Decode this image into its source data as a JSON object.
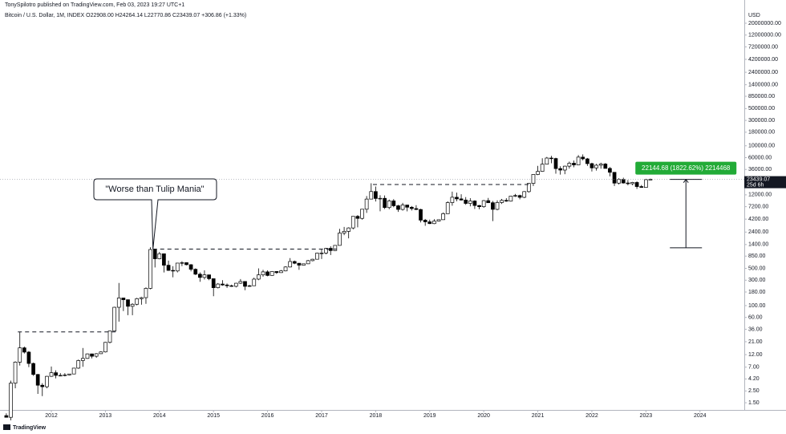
{
  "header": {
    "publisher": "TonySpilotro published on TradingView.com, Feb 03, 2023 19:27 UTC+1",
    "footer": "TradingView"
  },
  "chart_data": {
    "type": "candlestick",
    "title": "Bitcoin / U.S. Dollar, 1M, INDEX  O22908.00  H24264.14  L22770.86  C23439.07  +306.86 (+1.33%)",
    "unit": "USD",
    "log_scale": true,
    "up_color": "#ffffff",
    "down_color": "#000000",
    "edge_color": "#000000",
    "xlim": [
      2011.05,
      2024.82
    ],
    "xticks": [
      2012,
      2013,
      2014,
      2015,
      2016,
      2017,
      2018,
      2019,
      2020,
      2021,
      2022,
      2023,
      2024
    ],
    "ylim": [
      1.1,
      33600000
    ],
    "yticks": [
      {
        "value": 20000000,
        "label": "20000000.00"
      },
      {
        "value": 12000000,
        "label": "12000000.00"
      },
      {
        "value": 7200000,
        "label": "7200000.00"
      },
      {
        "value": 4200000,
        "label": "4200000.00"
      },
      {
        "value": 2400000,
        "label": "2400000.00"
      },
      {
        "value": 1400000,
        "label": "1400000.00"
      },
      {
        "value": 850000,
        "label": "850000.00"
      },
      {
        "value": 500000,
        "label": "500000.00"
      },
      {
        "value": 300000,
        "label": "300000.00"
      },
      {
        "value": 180000,
        "label": "180000.00"
      },
      {
        "value": 100000,
        "label": "100000.00"
      },
      {
        "value": 60000,
        "label": "60000.00"
      },
      {
        "value": 36000,
        "label": "36000.00"
      },
      {
        "value": 12000,
        "label": "12000.00"
      },
      {
        "value": 7200,
        "label": "7200.00"
      },
      {
        "value": 4200,
        "label": "4200.00"
      },
      {
        "value": 2400,
        "label": "2400.00"
      },
      {
        "value": 1400,
        "label": "1400.00"
      },
      {
        "value": 850,
        "label": "850.00"
      },
      {
        "value": 500,
        "label": "500.00"
      },
      {
        "value": 300,
        "label": "300.00"
      },
      {
        "value": 180,
        "label": "180.00"
      },
      {
        "value": 100,
        "label": "100.00"
      },
      {
        "value": 60,
        "label": "60.00"
      },
      {
        "value": 36,
        "label": "36.00"
      },
      {
        "value": 21,
        "label": "21.00"
      },
      {
        "value": 12,
        "label": "12.00"
      },
      {
        "value": 7,
        "label": "7.00"
      },
      {
        "value": 4.2,
        "label": "4.20"
      },
      {
        "value": 2.5,
        "label": "2.50"
      },
      {
        "value": 1.5,
        "label": "1.50"
      }
    ],
    "x": [
      2011.167,
      2011.25,
      2011.333,
      2011.417,
      2011.5,
      2011.583,
      2011.667,
      2011.75,
      2011.833,
      2011.917,
      2012,
      2012.083,
      2012.167,
      2012.25,
      2012.333,
      2012.417,
      2012.5,
      2012.583,
      2012.667,
      2012.75,
      2012.833,
      2012.917,
      2013,
      2013.083,
      2013.167,
      2013.25,
      2013.333,
      2013.417,
      2013.5,
      2013.583,
      2013.667,
      2013.75,
      2013.833,
      2013.917,
      2014,
      2014.083,
      2014.167,
      2014.25,
      2014.333,
      2014.417,
      2014.5,
      2014.583,
      2014.667,
      2014.75,
      2014.833,
      2014.917,
      2015,
      2015.083,
      2015.167,
      2015.25,
      2015.333,
      2015.417,
      2015.5,
      2015.583,
      2015.667,
      2015.75,
      2015.833,
      2015.917,
      2016,
      2016.083,
      2016.167,
      2016.25,
      2016.333,
      2016.417,
      2016.5,
      2016.583,
      2016.667,
      2016.75,
      2016.833,
      2016.917,
      2017,
      2017.083,
      2017.167,
      2017.25,
      2017.333,
      2017.417,
      2017.5,
      2017.583,
      2017.667,
      2017.75,
      2017.833,
      2017.917,
      2018,
      2018.083,
      2018.167,
      2018.25,
      2018.333,
      2018.417,
      2018.5,
      2018.583,
      2018.667,
      2018.75,
      2018.833,
      2018.917,
      2019,
      2019.083,
      2019.167,
      2019.25,
      2019.333,
      2019.417,
      2019.5,
      2019.583,
      2019.667,
      2019.75,
      2019.833,
      2019.917,
      2020,
      2020.083,
      2020.167,
      2020.25,
      2020.333,
      2020.417,
      2020.5,
      2020.583,
      2020.667,
      2020.75,
      2020.833,
      2020.917,
      2021,
      2021.083,
      2021.167,
      2021.25,
      2021.333,
      2021.417,
      2021.5,
      2021.583,
      2021.667,
      2021.75,
      2021.833,
      2021.917,
      2022,
      2022.083,
      2022.167,
      2022.25,
      2022.333,
      2022.417,
      2022.5,
      2022.583,
      2022.667,
      2022.75,
      2022.833,
      2022.917,
      2023,
      2023.083
    ],
    "open": [
      0.86,
      0.8,
      3.5,
      8.7,
      16.1,
      13.4,
      8.2,
      5.1,
      3.2,
      3.0,
      4.7,
      5.5,
      4.9,
      4.9,
      5.0,
      5.2,
      6.7,
      9.3,
      10.2,
      12.4,
      11.2,
      12.5,
      13.5,
      20.4,
      33.4,
      93,
      139,
      129,
      97,
      106,
      135,
      141,
      211,
      1130,
      757,
      940,
      573,
      458,
      447,
      628,
      640,
      586,
      481,
      389,
      338,
      378,
      320,
      217,
      254,
      244,
      236,
      230,
      263,
      284,
      230,
      236,
      314,
      377,
      430,
      368,
      437,
      416,
      448,
      531,
      673,
      624,
      574,
      609,
      698,
      742,
      964,
      970,
      1190,
      1080,
      1350,
      2300,
      2480,
      2870,
      4740,
      4340,
      6450,
      10000,
      13850,
      10260,
      10330,
      6930,
      9240,
      7490,
      6390,
      7730,
      7030,
      6630,
      6370,
      4020,
      3740,
      3460,
      3850,
      4100,
      5320,
      8580,
      10820,
      10080,
      9590,
      8290,
      9200,
      7570,
      7190,
      9350,
      8540,
      6410,
      8620,
      9450,
      9140,
      11350,
      11650,
      10780,
      13800,
      19700,
      28990,
      33110,
      45140,
      58920,
      57720,
      37330,
      35040,
      41460,
      47100,
      43790,
      61320,
      56900,
      46300,
      38480,
      43190,
      45530,
      37640,
      31800,
      19930,
      23310,
      20050,
      19430,
      20490,
      17170,
      16550,
      22908
    ],
    "high": [
      0.95,
      3.9,
      9,
      32,
      17,
      14,
      8.5,
      5.2,
      3.5,
      4.8,
      7.2,
      6.1,
      5.4,
      5.4,
      5.2,
      6.7,
      9.7,
      16,
      12.6,
      12.5,
      12.8,
      13.8,
      20.8,
      33.5,
      95,
      266,
      140,
      130,
      111,
      140,
      146,
      220,
      1242,
      1150,
      1020,
      950,
      700,
      550,
      630,
      680,
      650,
      600,
      500,
      420,
      460,
      380,
      320,
      265,
      300,
      260,
      247,
      267,
      315,
      285,
      245,
      335,
      500,
      470,
      460,
      445,
      440,
      465,
      548,
      780,
      700,
      630,
      613,
      720,
      755,
      980,
      1160,
      1210,
      1300,
      1360,
      2760,
      3000,
      2950,
      4760,
      5000,
      6470,
      11400,
      19800,
      17200,
      11800,
      11700,
      9800,
      9990,
      7780,
      8500,
      7770,
      7400,
      7680,
      6560,
      4240,
      4110,
      4200,
      4130,
      5600,
      9070,
      13800,
      13200,
      12300,
      10900,
      10400,
      9500,
      7750,
      9600,
      10500,
      9200,
      9470,
      10070,
      10400,
      11450,
      12480,
      12080,
      14100,
      19900,
      29300,
      41950,
      58350,
      61780,
      64900,
      59600,
      41330,
      42450,
      50500,
      52920,
      67000,
      69000,
      59100,
      47990,
      45800,
      48200,
      47450,
      40000,
      31900,
      24650,
      25200,
      22800,
      20990,
      21470,
      18400,
      23960,
      24264.14
    ],
    "low": [
      0.8,
      0.7,
      2.8,
      7.5,
      12.6,
      7,
      4.8,
      2.2,
      2,
      2.8,
      4.6,
      4.3,
      4.7,
      4.7,
      4.9,
      5.2,
      6.5,
      7.1,
      10,
      10.2,
      10.5,
      12.4,
      13.2,
      19.6,
      33,
      50,
      79,
      66,
      66,
      101,
      104,
      108,
      202,
      520,
      740,
      420,
      450,
      340,
      420,
      550,
      570,
      440,
      375,
      280,
      310,
      300,
      150,
      210,
      235,
      215,
      225,
      220,
      255,
      195,
      225,
      235,
      300,
      350,
      355,
      365,
      394,
      412,
      440,
      520,
      600,
      470,
      570,
      605,
      680,
      740,
      750,
      920,
      890,
      1060,
      1340,
      2100,
      1830,
      2700,
      2950,
      4120,
      5500,
      10000,
      9000,
      5900,
      6500,
      6450,
      7030,
      5750,
      6070,
      5880,
      6100,
      6200,
      3650,
      3150,
      3400,
      3390,
      3780,
      4070,
      5300,
      7500,
      9100,
      9400,
      7800,
      7300,
      6530,
      6430,
      6850,
      8450,
      3850,
      6150,
      8100,
      8900,
      8970,
      10960,
      9890,
      10400,
      13200,
      17600,
      28150,
      32400,
      44950,
      47000,
      30000,
      28800,
      29300,
      37300,
      39600,
      43300,
      53250,
      42000,
      32900,
      34300,
      37200,
      37700,
      26700,
      17600,
      18800,
      19550,
      18150,
      18200,
      15500,
      16300,
      16500,
      22770.86
    ],
    "close": [
      0.8,
      3.5,
      8.7,
      16.1,
      13.4,
      8.2,
      5.1,
      3.2,
      3.0,
      4.7,
      5.5,
      4.9,
      4.9,
      5.0,
      5.2,
      6.7,
      9.3,
      10.2,
      12.4,
      11.2,
      12.5,
      13.5,
      20.4,
      33.4,
      93,
      139,
      129,
      97,
      106,
      135,
      141,
      211,
      1130,
      757,
      940,
      573,
      458,
      447,
      628,
      640,
      586,
      481,
      389,
      338,
      378,
      320,
      217,
      254,
      244,
      236,
      230,
      263,
      284,
      230,
      236,
      314,
      377,
      430,
      368,
      437,
      416,
      448,
      531,
      673,
      624,
      574,
      609,
      698,
      742,
      964,
      970,
      1190,
      1080,
      1350,
      2300,
      2480,
      2870,
      4740,
      4340,
      6450,
      10000,
      13850,
      10260,
      10330,
      6930,
      9240,
      7490,
      6390,
      7730,
      7030,
      6630,
      6370,
      4020,
      3740,
      3460,
      3850,
      4100,
      5320,
      8580,
      10820,
      10080,
      9590,
      8290,
      9200,
      7570,
      7190,
      9350,
      8540,
      6410,
      8620,
      9450,
      9140,
      11350,
      11650,
      10780,
      13800,
      19700,
      28990,
      33110,
      45140,
      58920,
      57720,
      37330,
      35040,
      41460,
      47100,
      43790,
      61320,
      56900,
      46300,
      38480,
      43190,
      45530,
      37640,
      31800,
      19930,
      23310,
      20050,
      19430,
      20490,
      17170,
      16550,
      23140,
      23439.07
    ],
    "countdown": "25d 6h",
    "levels": [
      {
        "value": 32,
        "x": [
          2011.38,
          2013.2
        ]
      },
      {
        "value": 1150,
        "x": [
          2013.88,
          2017.28
        ]
      },
      {
        "value": 18750,
        "x": [
          2017.95,
          2020.84
        ]
      }
    ],
    "callout": "\"Worse than Tulip Mania\"",
    "measure": {
      "from": 1215,
      "to": 23359.68,
      "x": 2023.74,
      "label": "22144.68 (1822.62%) 2214468"
    }
  }
}
